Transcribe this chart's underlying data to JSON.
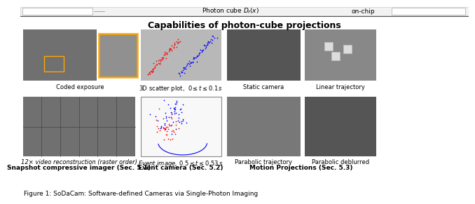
{
  "title": "Capabilities of photon-cube projections",
  "title_fontsize": 9,
  "title_fontweight": "bold",
  "bg_color": "#ffffff",
  "row1_labels": [
    "Coded exposure",
    "3D scatter plot,  $0 \\leq t \\leq 0.1\\,s$",
    "Static camera",
    "Linear trajectory"
  ],
  "row2_labels_top": [
    "12× video reconstruction (raster order)",
    "Event image, $0.5 \\leq t \\leq 0.53\\,s$",
    "Parabolic trajectory",
    "Parabolic deblurred"
  ],
  "row2_labels_bottom": [
    "Snapshot compressive imager (Sec. 5.1)",
    "Event camera (Sec. 5.2)",
    "Motion Projections (Sec. 5.3)"
  ],
  "label_fontsize": 6.0,
  "label_fontsize_bold": 6.5,
  "caption": "Figure 1: SoDaCam: Software-defined Cameras via Single-Photon Imaging",
  "caption_fontsize": 6.5,
  "img_gray_dark": "#555555",
  "img_gray_mid": "#707070",
  "img_gray_light": "#909090",
  "img_white": "#f0f0f0"
}
